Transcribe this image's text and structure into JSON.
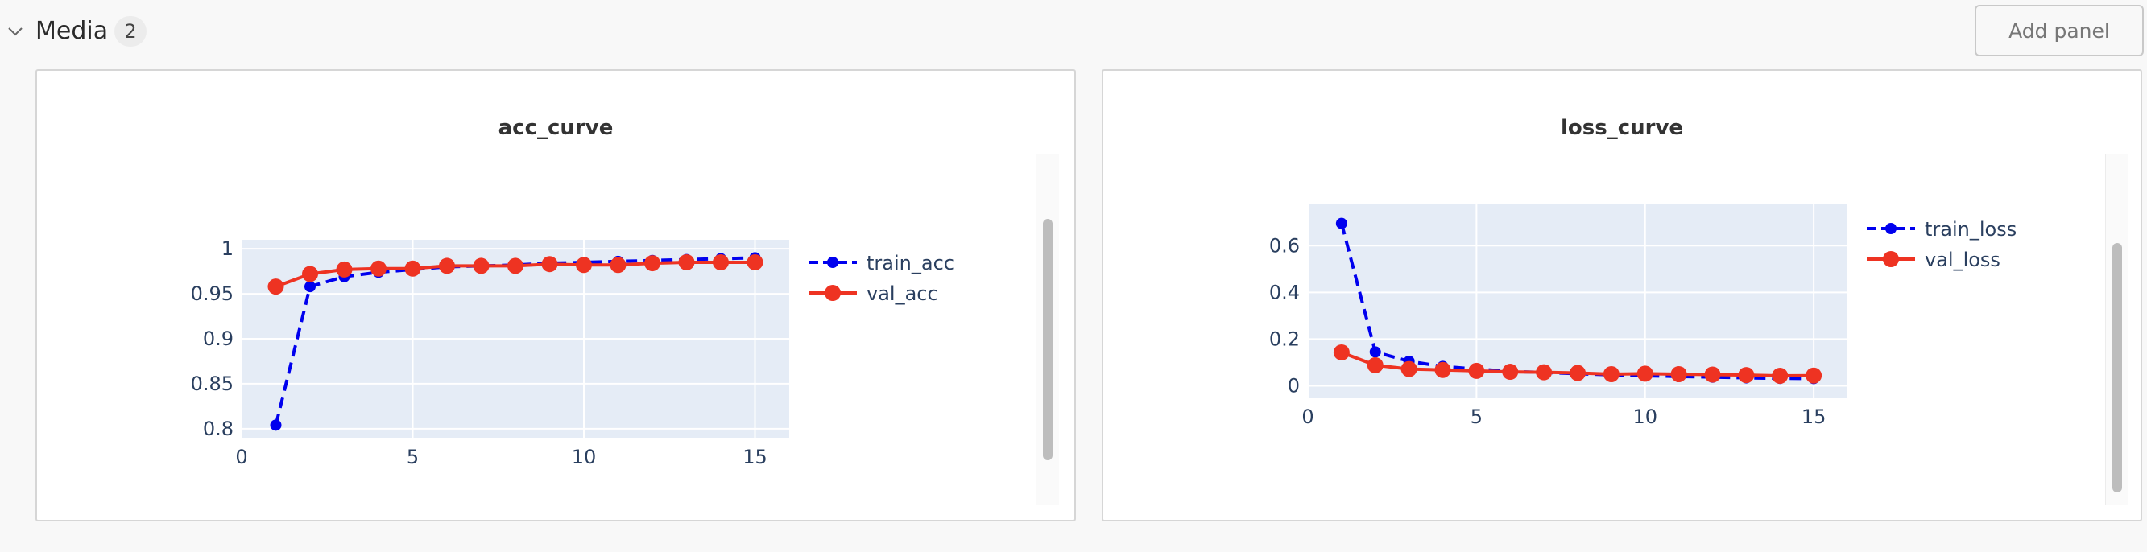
{
  "section": {
    "title": "Media",
    "count": "2",
    "add_panel_label": "Add panel"
  },
  "panels": [
    {
      "title": "acc_curve"
    },
    {
      "title": "loss_curve"
    }
  ],
  "chart_data": [
    {
      "type": "line",
      "title": "acc_curve",
      "xlabel": "",
      "ylabel": "",
      "xlim": [
        0,
        16
      ],
      "ylim": [
        0.79,
        1.01
      ],
      "xticks": [
        0,
        5,
        10,
        15
      ],
      "xtick_labels": [
        "0",
        "5",
        "10",
        "15"
      ],
      "yticks": [
        0.8,
        0.85,
        0.9,
        0.95,
        1.0
      ],
      "ytick_labels": [
        "0.8",
        "0.85",
        "0.9",
        "0.95",
        "1"
      ],
      "grid": true,
      "legend_position": "right",
      "x": [
        1,
        2,
        3,
        4,
        5,
        6,
        7,
        8,
        9,
        10,
        11,
        12,
        13,
        14,
        15
      ],
      "series": [
        {
          "name": "train_acc",
          "color": "#0000ee",
          "style": "dashed",
          "marker_size": "small",
          "values": [
            0.804,
            0.958,
            0.969,
            0.974,
            0.977,
            0.98,
            0.981,
            0.982,
            0.984,
            0.985,
            0.986,
            0.987,
            0.988,
            0.989,
            0.99
          ]
        },
        {
          "name": "val_acc",
          "color": "#ee3322",
          "style": "solid",
          "marker_size": "large",
          "values": [
            0.958,
            0.972,
            0.977,
            0.978,
            0.978,
            0.981,
            0.981,
            0.981,
            0.983,
            0.982,
            0.982,
            0.984,
            0.985,
            0.985,
            0.985
          ]
        }
      ]
    },
    {
      "type": "line",
      "title": "loss_curve",
      "xlabel": "",
      "ylabel": "",
      "xlim": [
        0,
        16
      ],
      "ylim": [
        -0.05,
        0.78
      ],
      "xticks": [
        0,
        5,
        10,
        15
      ],
      "xtick_labels": [
        "0",
        "5",
        "10",
        "15"
      ],
      "yticks": [
        0,
        0.2,
        0.4,
        0.6
      ],
      "ytick_labels": [
        "0",
        "0.2",
        "0.4",
        "0.6"
      ],
      "grid": true,
      "legend_position": "top-right",
      "x": [
        1,
        2,
        3,
        4,
        5,
        6,
        7,
        8,
        9,
        10,
        11,
        12,
        13,
        14,
        15
      ],
      "series": [
        {
          "name": "train_loss",
          "color": "#0000ee",
          "style": "dashed",
          "marker_size": "small",
          "values": [
            0.695,
            0.145,
            0.105,
            0.083,
            0.072,
            0.062,
            0.057,
            0.052,
            0.047,
            0.043,
            0.04,
            0.037,
            0.034,
            0.032,
            0.031
          ]
        },
        {
          "name": "val_loss",
          "color": "#ee3322",
          "style": "solid",
          "marker_size": "large",
          "values": [
            0.143,
            0.088,
            0.072,
            0.068,
            0.064,
            0.06,
            0.058,
            0.055,
            0.05,
            0.052,
            0.05,
            0.048,
            0.046,
            0.043,
            0.044
          ]
        }
      ]
    }
  ]
}
